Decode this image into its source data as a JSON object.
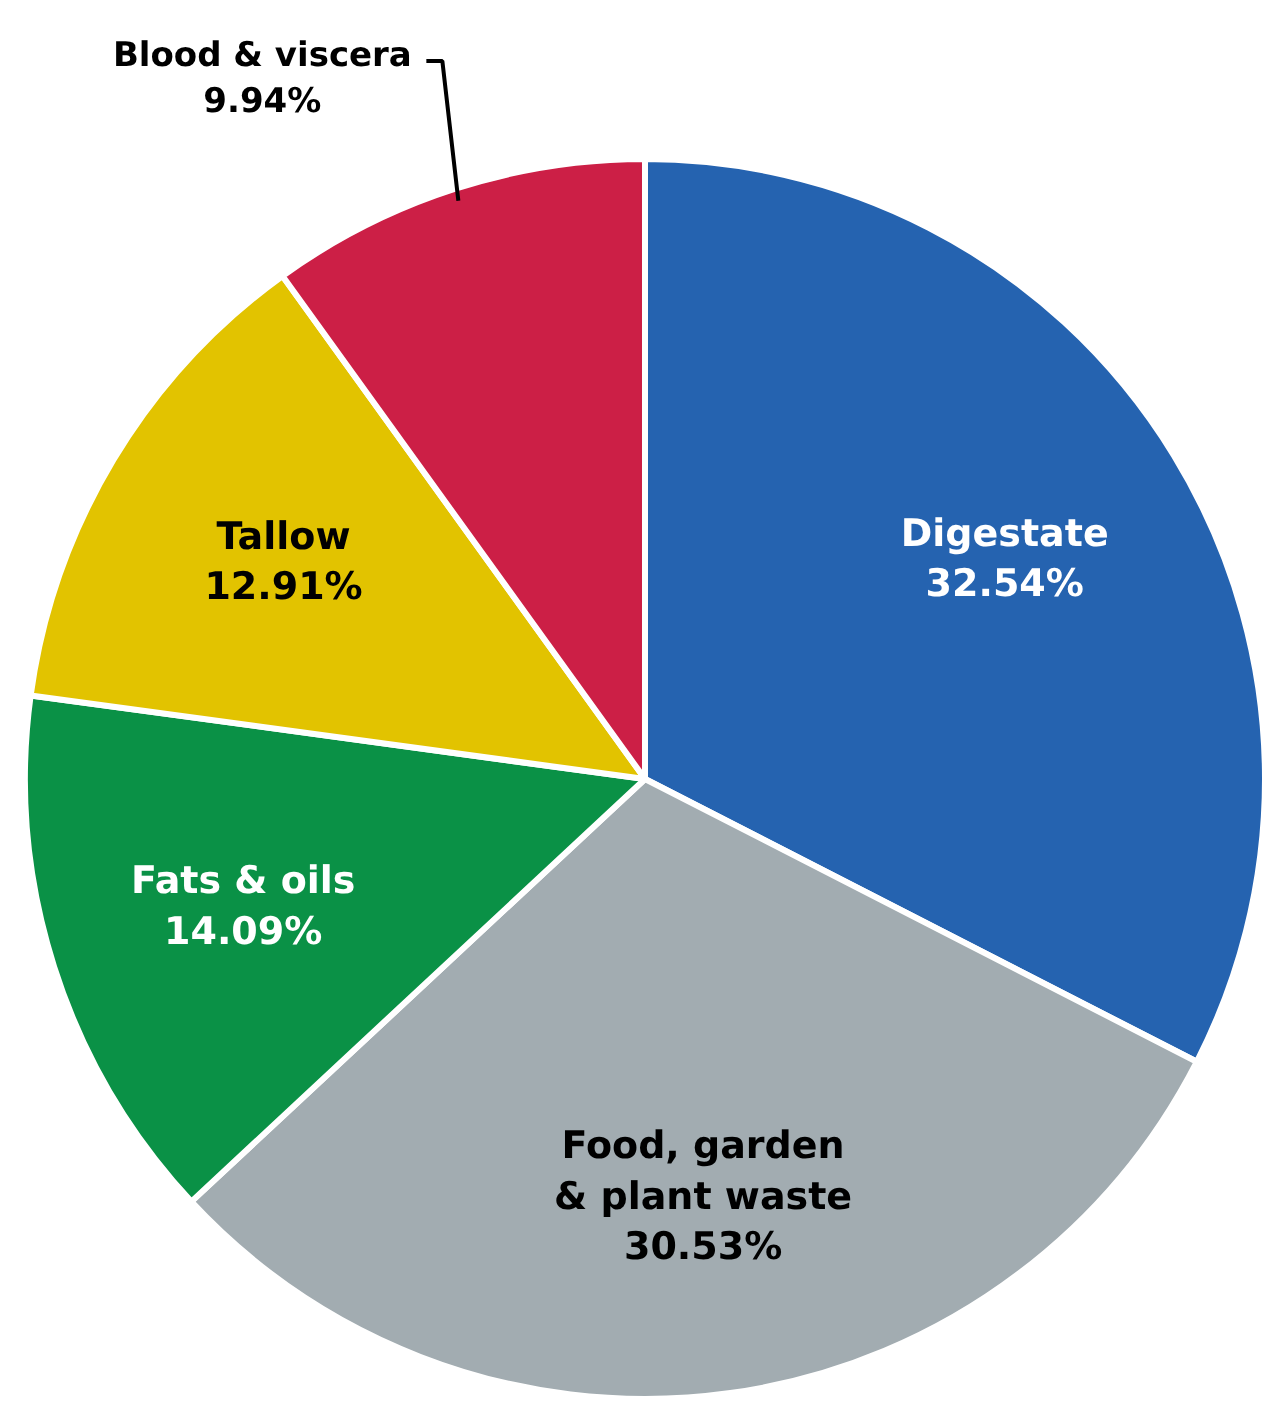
{
  "chart_data": {
    "type": "pie",
    "categories": [
      "Digestate",
      "Food, garden & plant waste",
      "Fats & oils",
      "Tallow",
      "Blood & viscera"
    ],
    "values": [
      32.54,
      30.53,
      14.09,
      12.91,
      9.94
    ],
    "colors": [
      "#2563b0",
      "#a2acb1",
      "#0a9146",
      "#e2c300",
      "#cc1f46"
    ],
    "value_labels": [
      "32.54%",
      "30.53%",
      "14.09%",
      "12.91%",
      "9.94%"
    ]
  }
}
